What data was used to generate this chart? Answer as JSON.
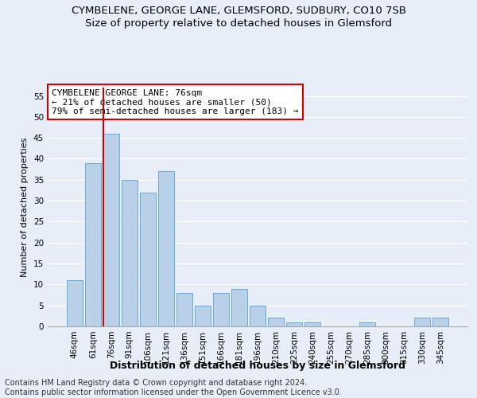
{
  "title1": "CYMBELENE, GEORGE LANE, GLEMSFORD, SUDBURY, CO10 7SB",
  "title2": "Size of property relative to detached houses in Glemsford",
  "xlabel": "Distribution of detached houses by size in Glemsford",
  "ylabel": "Number of detached properties",
  "footer": "Contains HM Land Registry data © Crown copyright and database right 2024.\nContains public sector information licensed under the Open Government Licence v3.0.",
  "categories": [
    "46sqm",
    "61sqm",
    "76sqm",
    "91sqm",
    "106sqm",
    "121sqm",
    "136sqm",
    "151sqm",
    "166sqm",
    "181sqm",
    "196sqm",
    "210sqm",
    "225sqm",
    "240sqm",
    "255sqm",
    "270sqm",
    "285sqm",
    "300sqm",
    "315sqm",
    "330sqm",
    "345sqm"
  ],
  "values": [
    11,
    39,
    46,
    35,
    32,
    37,
    8,
    5,
    8,
    9,
    5,
    2,
    1,
    1,
    0,
    0,
    1,
    0,
    0,
    2,
    2
  ],
  "bar_color": "#b8d0e8",
  "bar_edge_color": "#6aaad4",
  "highlight_index": 2,
  "highlight_line_color": "#cc0000",
  "annotation_text": "CYMBELENE GEORGE LANE: 76sqm\n← 21% of detached houses are smaller (50)\n79% of semi-detached houses are larger (183) →",
  "annotation_box_color": "#ffffff",
  "annotation_box_edge_color": "#cc0000",
  "ylim": [
    0,
    57
  ],
  "yticks": [
    0,
    5,
    10,
    15,
    20,
    25,
    30,
    35,
    40,
    45,
    50,
    55
  ],
  "background_color": "#e8eef8",
  "grid_color": "#ffffff",
  "title1_fontsize": 9.5,
  "title2_fontsize": 9.5,
  "xlabel_fontsize": 9,
  "ylabel_fontsize": 8,
  "tick_fontsize": 7.5,
  "annotation_fontsize": 8,
  "footer_fontsize": 7
}
